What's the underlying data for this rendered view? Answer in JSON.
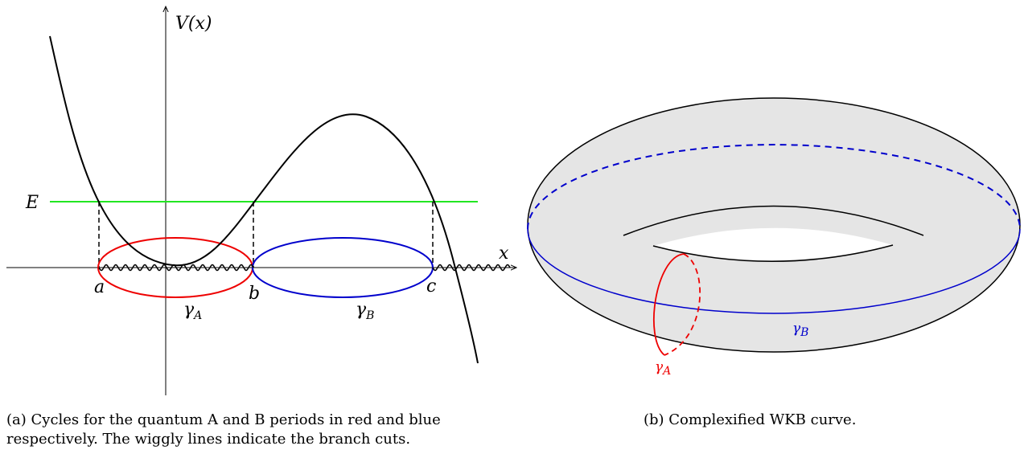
{
  "figure_a": {
    "axis_labels": {
      "y": "V(x)",
      "x": "x"
    },
    "energy_label": "E",
    "turning_points": [
      "a",
      "b",
      "c"
    ],
    "cycle_labels": [
      {
        "symbol": "γ",
        "sub": "A"
      },
      {
        "symbol": "γ",
        "sub": "B"
      }
    ],
    "caption_lines": [
      "(a) Cycles for the quantum A and B periods in red and blue",
      "respectively. The wiggly lines indicate the branch cuts."
    ]
  },
  "figure_b": {
    "cycle_labels": [
      {
        "symbol": "γ",
        "sub": "A"
      },
      {
        "symbol": "γ",
        "sub": "B"
      }
    ],
    "caption": "(b) Complexified WKB curve."
  }
}
